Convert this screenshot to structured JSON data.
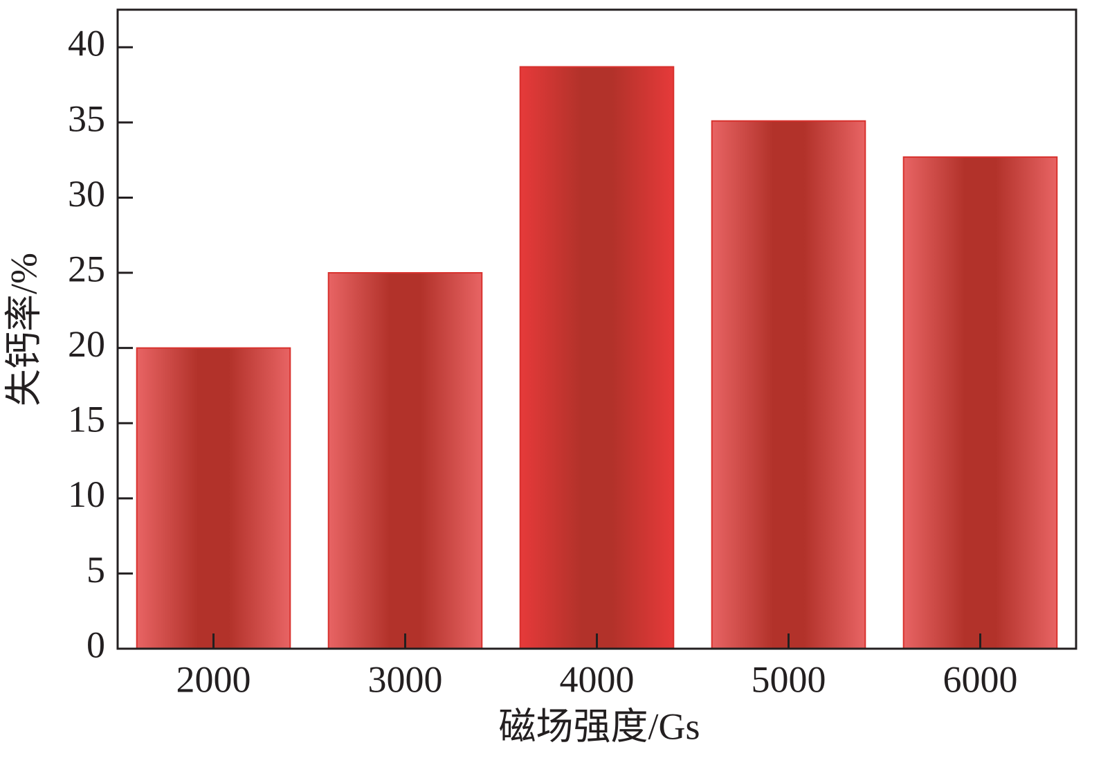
{
  "chart_data": {
    "type": "bar",
    "x_label": "磁场强度/Gs",
    "y_label": "失钙率/%",
    "categories": [
      "2000",
      "3000",
      "4000",
      "5000",
      "6000"
    ],
    "values": [
      20,
      25,
      38.7,
      35.1,
      32.7
    ],
    "colors": [
      "#e86464",
      "#e86464",
      "#e63a3a",
      "#e86464",
      "#e86464"
    ],
    "ylim": [
      0,
      42.5
    ],
    "yticks": [
      0,
      5,
      10,
      15,
      20,
      25,
      30,
      35,
      40
    ]
  }
}
